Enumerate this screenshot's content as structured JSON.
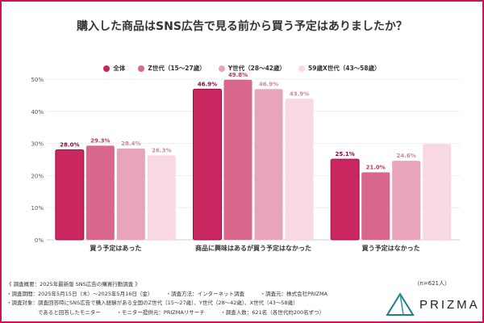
{
  "chart_data": {
    "type": "bar",
    "title": "購入した商品はSNS広告で見る前から買う予定はありましたか？",
    "categories": [
      "買う予定はあった",
      "商品に興味はあるが買う予定はなかった",
      "買う予定はなかった"
    ],
    "series": [
      {
        "name": "全体",
        "color": "#c8285f",
        "values": [
          28.0,
          46.9,
          25.1
        ],
        "labels": [
          "28.0%",
          "46.9%",
          "25.1%"
        ]
      },
      {
        "name": "Z世代（15〜27歳）",
        "color": "#d9678c",
        "values": [
          29.3,
          49.8,
          21.0
        ],
        "labels": [
          "29.3%",
          "49.8%",
          "21.0%"
        ]
      },
      {
        "name": "Y世代（28〜42歳）",
        "color": "#e8a5ba",
        "values": [
          28.4,
          46.9,
          24.6
        ],
        "labels": [
          "28.4%",
          "46.9%",
          "24.6%"
        ]
      },
      {
        "name": "59歳X世代（43〜58歳）",
        "color": "#f8d9e2",
        "values": [
          26.3,
          43.9,
          29.8
        ],
        "labels": [
          "26.3%",
          "43.9%",
          ""
        ]
      }
    ],
    "yticks": [
      "0%",
      "10%",
      "20%",
      "30%",
      "40%",
      "50%"
    ],
    "ylim": [
      0,
      50
    ],
    "grid": true,
    "legend": "top"
  },
  "notes": [
    "《 調査概要：2025年最新版 SNS広告の購買行動調査 》",
    "・調査期間：2025年5月15日（木）〜2025年5月16日（金）　　　・調査方法：インターネット調査　　　・調査元：株式会社PRIZMA",
    "・調査対象：調査回答時にSNS広告で購入経験がある全国のZ世代（15〜27歳）、Y世代（28〜42歳）、X世代（43〜58歳）",
    "　　　　　　であると回答したモニター　　　・モニター提供元：PRIZMAリサーチ　　　・調査人数：621名（各世代約200名ずつ）"
  ],
  "sample": "（n=621人）",
  "logo": "PRIZMA"
}
